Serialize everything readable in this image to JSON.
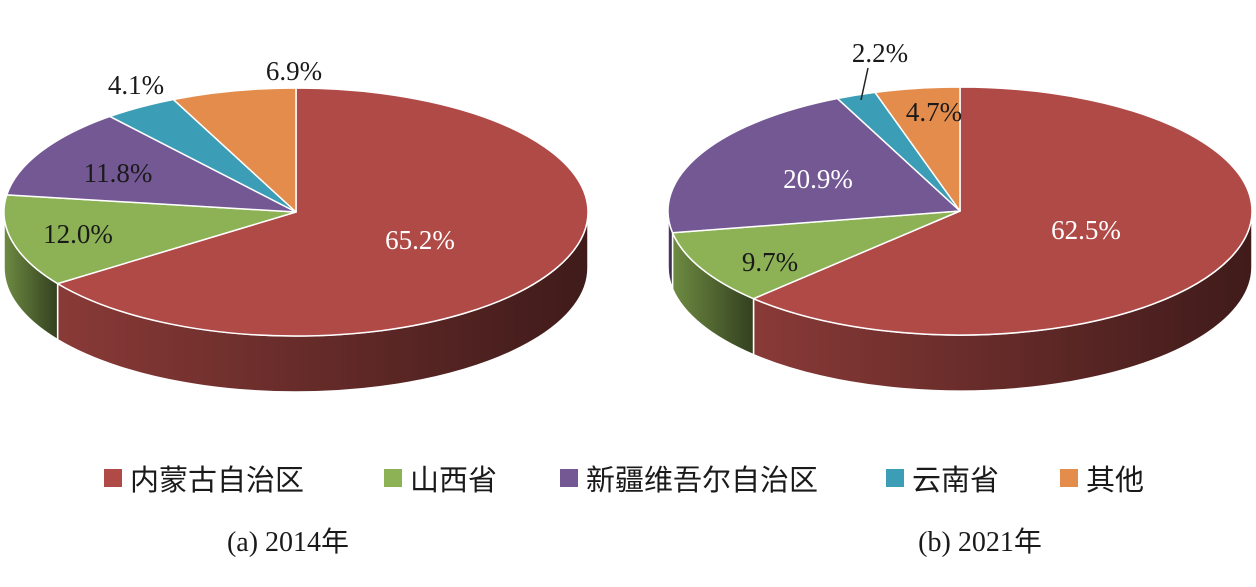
{
  "chart_data": [
    {
      "type": "pie",
      "caption": "(a) 2014年",
      "slices": [
        {
          "label": "内蒙古自治区",
          "value": 65.2,
          "text": "65.2%"
        },
        {
          "label": "山西省",
          "value": 12.0,
          "text": "12.0%"
        },
        {
          "label": "新疆维吾尔自治区",
          "value": 11.8,
          "text": "11.8%"
        },
        {
          "label": "云南省",
          "value": 4.1,
          "text": "4.1%"
        },
        {
          "label": "其他",
          "value": 6.9,
          "text": "6.9%"
        }
      ]
    },
    {
      "type": "pie",
      "caption": "(b) 2021年",
      "slices": [
        {
          "label": "内蒙古自治区",
          "value": 62.5,
          "text": "62.5%"
        },
        {
          "label": "山西省",
          "value": 9.7,
          "text": "9.7%"
        },
        {
          "label": "新疆维吾尔自治区",
          "value": 20.9,
          "text": "20.9%"
        },
        {
          "label": "云南省",
          "value": 2.2,
          "text": "2.2%"
        },
        {
          "label": "其他",
          "value": 4.7,
          "text": "4.7%"
        }
      ]
    }
  ],
  "legend": {
    "placement": "bottom",
    "items": [
      {
        "label": "内蒙古自治区",
        "color": "#B04A47"
      },
      {
        "label": "山西省",
        "color": "#8DB255"
      },
      {
        "label": "新疆维吾尔自治区",
        "color": "#735894"
      },
      {
        "label": "云南省",
        "color": "#3C9DB7"
      },
      {
        "label": "其他",
        "color": "#E48C4C"
      }
    ]
  }
}
